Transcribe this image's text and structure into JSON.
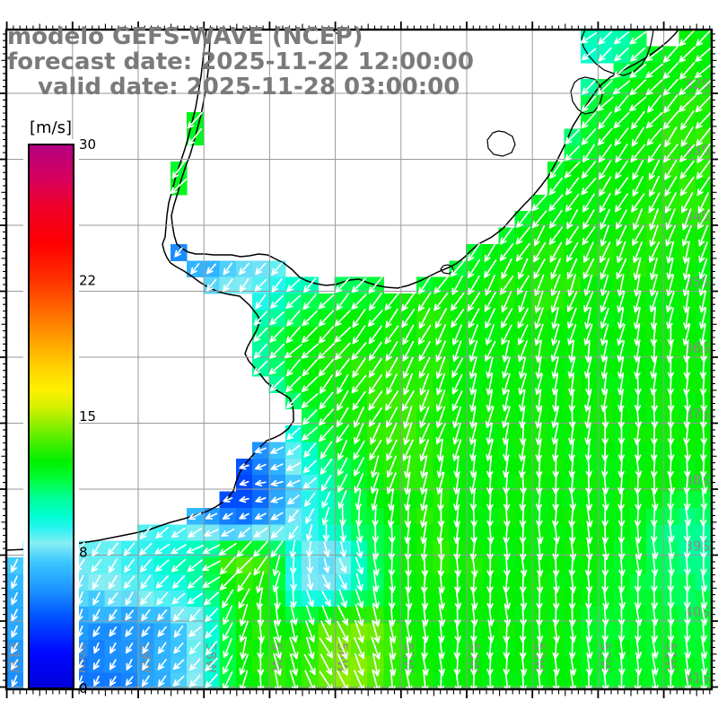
{
  "title": {
    "line1": "modelo GEFS-WAVE (NCEP)",
    "line2": "forecast date: 2025-11-22 12:00:00",
    "line3": "valid date: 2025-11-28 03:00:00"
  },
  "colorbar": {
    "unit_label": "[m/s]",
    "min": 0,
    "max": 30,
    "tick_values": [
      0,
      7.5,
      15,
      22.5,
      30
    ],
    "tick_labels": [
      "0",
      "8",
      "15",
      "22",
      "30"
    ],
    "stops": [
      [
        0,
        "#0000d8"
      ],
      [
        2,
        "#0008ff"
      ],
      [
        4,
        "#0055ff"
      ],
      [
        5.5,
        "#1e96ff"
      ],
      [
        7,
        "#3cc8ff"
      ],
      [
        8,
        "#86eef2"
      ],
      [
        8.8,
        "#2ef2f2"
      ],
      [
        9.5,
        "#00ffd2"
      ],
      [
        10.5,
        "#00ff96"
      ],
      [
        11.5,
        "#00ff3c"
      ],
      [
        12.5,
        "#00f000"
      ],
      [
        13.5,
        "#40ee00"
      ],
      [
        14.5,
        "#8cee00"
      ],
      [
        15.5,
        "#d2f000"
      ],
      [
        16.5,
        "#fff000"
      ],
      [
        18,
        "#ffc800"
      ],
      [
        19.5,
        "#ff9600"
      ],
      [
        21,
        "#ff6400"
      ],
      [
        22.5,
        "#ff3200"
      ],
      [
        24.5,
        "#ff0000"
      ],
      [
        26.5,
        "#f00028"
      ],
      [
        28,
        "#d8005a"
      ],
      [
        30,
        "#b40082"
      ]
    ]
  },
  "axes": {
    "lat_labels": [
      "32S",
      "33S",
      "34S",
      "35S",
      "36S",
      "37S",
      "38S",
      "39S",
      "40S",
      "41S"
    ],
    "lat_values": [
      32,
      33,
      34,
      35,
      36,
      37,
      38,
      39,
      40,
      41
    ],
    "lon_labels": [
      "61W",
      "60W",
      "59W",
      "58W",
      "57W",
      "56W",
      "55W",
      "54W",
      "53W",
      "52W",
      "51W"
    ],
    "lon_values": [
      61,
      60,
      59,
      58,
      57,
      56,
      55,
      54,
      53,
      52,
      51
    ]
  },
  "colors": {
    "land": "#ffffff",
    "coastline": "#000000",
    "grid": "#999999",
    "border": "#000000",
    "arrow": "#ffffff",
    "axis_label": "#8a8a8a",
    "title_text": "#7a7a7a",
    "colorbar_label": "#000000"
  },
  "chart_data": {
    "type": "heatmap",
    "overlay": "vector-field",
    "title": "modelo GEFS-WAVE (NCEP)",
    "units": "m/s",
    "lon_west": 61.0,
    "lon_east": 50.27,
    "lat_north": 31.0,
    "lat_south": 41.05,
    "field_grid_deg": 0.5,
    "field_note": "wave/wind magnitude m/s; rows 31S to 41S, cols 61W to 50W",
    "field": [
      [
        12,
        12,
        12,
        12,
        12,
        12,
        12,
        12,
        12,
        12,
        12,
        12,
        12,
        12,
        12,
        12,
        12,
        11,
        9.5,
        10.5,
        12,
        12.5
      ],
      [
        12,
        12,
        12,
        12,
        12,
        12,
        12,
        12,
        12,
        12,
        12,
        12,
        12,
        12,
        12,
        12,
        12,
        10.5,
        9,
        11.5,
        12.5,
        12.5
      ],
      [
        12,
        12,
        12,
        12,
        12,
        12,
        12,
        12,
        12,
        12,
        12,
        12,
        12,
        12,
        12,
        12,
        12,
        9.5,
        11.5,
        12.5,
        12.5,
        13
      ],
      [
        12,
        12,
        12,
        12,
        12,
        12,
        12,
        12,
        12,
        12,
        12,
        12,
        12,
        12,
        12,
        12,
        11.5,
        10,
        12.5,
        12.5,
        13,
        13
      ],
      [
        12,
        12,
        12,
        12,
        12,
        12,
        12,
        12,
        12,
        12,
        12,
        12,
        12,
        12,
        12,
        11.5,
        10,
        12,
        12.5,
        12.5,
        13,
        13
      ],
      [
        12,
        12,
        12,
        12,
        12,
        12,
        12,
        12,
        12,
        12,
        12,
        12,
        12,
        12,
        10.5,
        9.5,
        11.5,
        12.5,
        12.5,
        13,
        13,
        13
      ],
      [
        6,
        6,
        6,
        6,
        6,
        5.5,
        5.5,
        6.5,
        7.5,
        8,
        8,
        8.5,
        9,
        9.5,
        10.5,
        12,
        12.5,
        12.5,
        12.5,
        13,
        13,
        13
      ],
      [
        5.5,
        5.5,
        5.5,
        5.5,
        5.5,
        5,
        6,
        7,
        8,
        8.5,
        9,
        9.5,
        10,
        10.5,
        11.5,
        12.5,
        13,
        13,
        13,
        13,
        13,
        12.5
      ],
      [
        7,
        7,
        7,
        7,
        7,
        7.5,
        7.5,
        8,
        8.5,
        10.5,
        11.5,
        12,
        12.5,
        12.5,
        12.5,
        13,
        13,
        13,
        12.5,
        12.5,
        12.5,
        12.5
      ],
      [
        8,
        8,
        8,
        8,
        8,
        8,
        8,
        8.5,
        11,
        12,
        12.5,
        12.5,
        13,
        13,
        12.5,
        12.5,
        12.5,
        12.5,
        12.5,
        12.5,
        12.5,
        12.5
      ],
      [
        9,
        9,
        9,
        9,
        9,
        9,
        9,
        9,
        11,
        12.5,
        13,
        13,
        13,
        13,
        12.5,
        12.5,
        12.5,
        12.5,
        12.5,
        12.5,
        12.5,
        12.5
      ],
      [
        9,
        9,
        9,
        9,
        9,
        9,
        9,
        9.5,
        10,
        12,
        12.5,
        13,
        13.5,
        13,
        12.5,
        12.5,
        12.5,
        12.5,
        12.5,
        12.5,
        12.5,
        12.5
      ],
      [
        8,
        8,
        8,
        8,
        8,
        8,
        7,
        6,
        7.5,
        11,
        12.5,
        13,
        13.5,
        13,
        12.5,
        12.5,
        12.5,
        12.5,
        12.5,
        12.5,
        12.5,
        12.5
      ],
      [
        7,
        7,
        7,
        7,
        7,
        6,
        5,
        3.5,
        5.5,
        9,
        11.5,
        12.5,
        13.5,
        13,
        12.5,
        12.5,
        12.5,
        12.5,
        12.5,
        12.5,
        12.5,
        12.5
      ],
      [
        7,
        7,
        7,
        7,
        7,
        6,
        4.5,
        3,
        4.5,
        8,
        10.5,
        12,
        13,
        13,
        12.5,
        12.5,
        12.5,
        12.5,
        12.5,
        12.5,
        12.5,
        12
      ],
      [
        7.5,
        7.5,
        8,
        8,
        8,
        8.5,
        6.5,
        5,
        6.5,
        8.5,
        10.5,
        11.5,
        12.5,
        13,
        12.5,
        12.5,
        12.5,
        12.5,
        12.5,
        12,
        11,
        10.5
      ],
      [
        7,
        7.5,
        8,
        8.5,
        9,
        9.5,
        11,
        14.5,
        13.5,
        8,
        7,
        10.5,
        12.5,
        13,
        13,
        12.5,
        12.5,
        12.5,
        12.5,
        12,
        11,
        10.5
      ],
      [
        6.5,
        7,
        7.5,
        8,
        8.5,
        9,
        10.5,
        12.5,
        12.5,
        7.5,
        8.5,
        10.5,
        12.5,
        13,
        12.5,
        12.5,
        12.5,
        12.5,
        12,
        11.5,
        11.5,
        11
      ],
      [
        6,
        6.5,
        6,
        5.5,
        5.5,
        6.5,
        8.5,
        12.5,
        13,
        12.5,
        14,
        14.5,
        12.5,
        12.5,
        12.5,
        12.5,
        12.5,
        12.5,
        12,
        12,
        11.5,
        11.5
      ],
      [
        5.5,
        5.5,
        5,
        5,
        5.5,
        6.5,
        8.5,
        12.5,
        13,
        13,
        14.5,
        14,
        13,
        12.5,
        12.5,
        12.5,
        12.5,
        12.5,
        12,
        12,
        12,
        12
      ]
    ],
    "dir_grid_deg": 1.0,
    "dir_note": "arrow direction, degrees clockwise from north(up); rows 31S-41S, cols 61W-50W",
    "dir": [
      [
        228,
        228,
        228,
        228,
        228,
        228,
        228,
        230,
        232,
        230,
        228
      ],
      [
        226,
        226,
        226,
        226,
        226,
        226,
        226,
        228,
        228,
        226,
        222
      ],
      [
        225,
        225,
        224,
        222,
        220,
        218,
        220,
        222,
        222,
        218,
        214
      ],
      [
        224,
        222,
        220,
        216,
        214,
        216,
        218,
        218,
        214,
        208,
        202
      ],
      [
        222,
        220,
        216,
        218,
        222,
        222,
        218,
        212,
        205,
        198,
        192
      ],
      [
        220,
        218,
        216,
        224,
        228,
        220,
        212,
        202,
        195,
        189,
        184
      ],
      [
        218,
        216,
        220,
        232,
        238,
        214,
        203,
        195,
        188,
        183,
        180
      ],
      [
        214,
        212,
        226,
        248,
        264,
        203,
        193,
        186,
        181,
        179,
        177
      ],
      [
        212,
        209,
        220,
        242,
        210,
        152,
        181,
        180,
        178,
        177,
        176
      ],
      [
        208,
        205,
        213,
        227,
        172,
        150,
        174,
        178,
        177,
        176,
        175
      ]
    ],
    "cell_deg": 0.25,
    "arrow_spacing_deg": 0.25
  }
}
